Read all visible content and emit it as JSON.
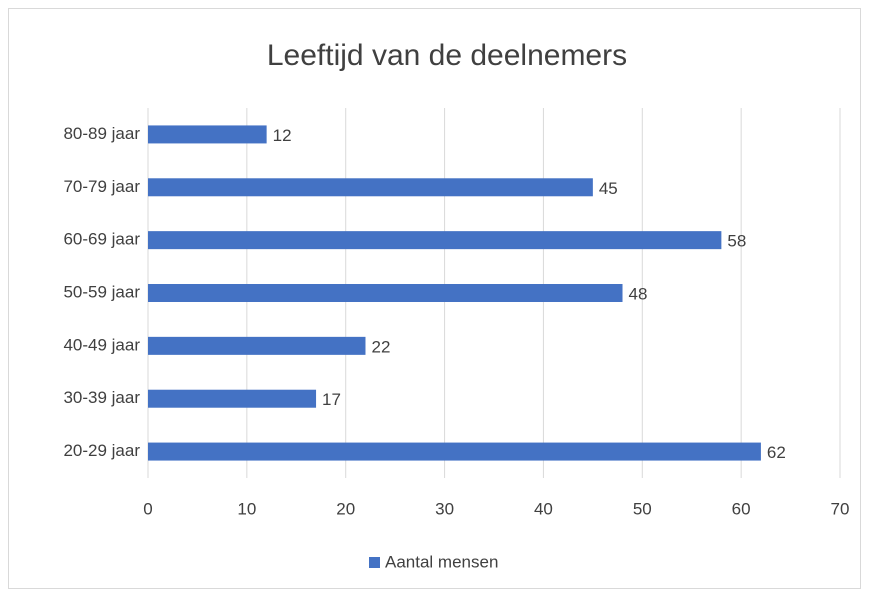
{
  "chart_data": {
    "type": "bar",
    "orientation": "horizontal",
    "title": "Leeftijd van de deelnemers",
    "categories": [
      "20-29 jaar",
      "30-39 jaar",
      "40-49 jaar",
      "50-59 jaar",
      "60-69 jaar",
      "70-79 jaar",
      "80-89 jaar"
    ],
    "series": [
      {
        "name": "Aantal mensen",
        "color": "#4472c4",
        "values": [
          62,
          17,
          22,
          48,
          58,
          45,
          12
        ]
      }
    ],
    "xlim": [
      0,
      70
    ],
    "xticks": [
      0,
      10,
      20,
      30,
      40,
      50,
      60,
      70
    ],
    "grid": true,
    "legend": "bottom"
  }
}
